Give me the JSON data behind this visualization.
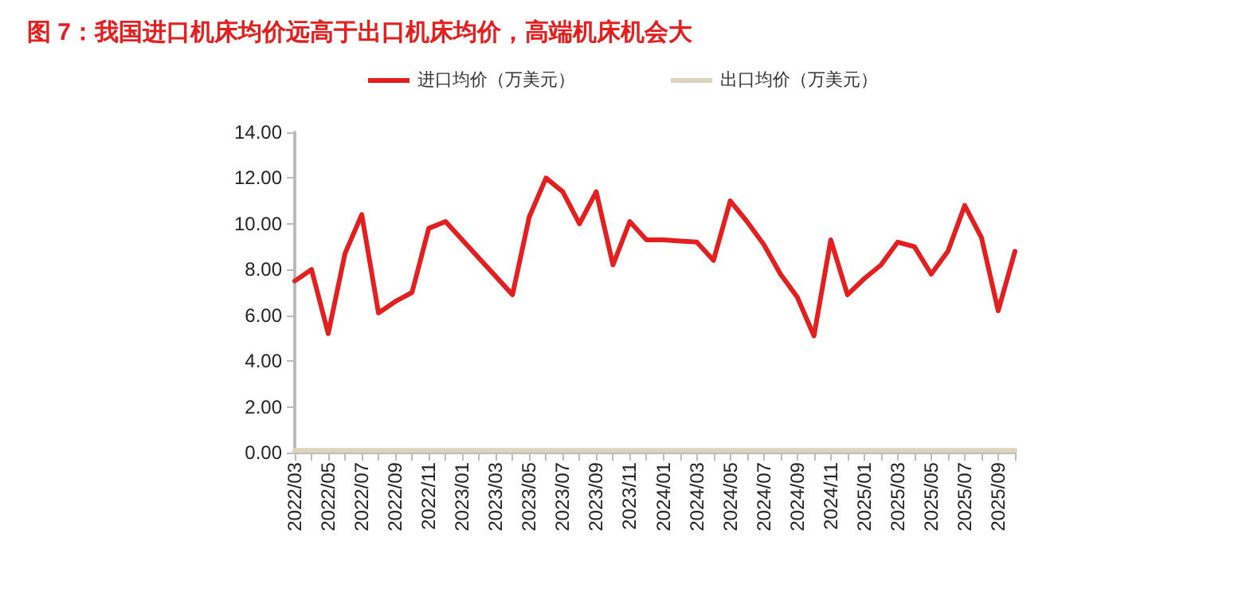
{
  "chart_data": {
    "type": "line",
    "title": "图 7：我国进口机床均价远高于出口机床均价，高端机床机会大",
    "categories": [
      "2022/03",
      null,
      "2022/05",
      null,
      "2022/07",
      null,
      "2022/09",
      null,
      "2022/11",
      null,
      "2023/01",
      null,
      "2023/03",
      null,
      "2023/05",
      null,
      "2023/07",
      null,
      "2023/09",
      null,
      "2023/11",
      null,
      "2024/01",
      null,
      "2024/03",
      null,
      "2024/05",
      null,
      "2024/07",
      null,
      "2024/09",
      null,
      "2024/11",
      null,
      "2025/01",
      null,
      "2025/03",
      null,
      "2025/05",
      null,
      "2025/07",
      null,
      "2025/09",
      null
    ],
    "series": [
      {
        "name": "进口均价（万美元）",
        "color": "#e3201f",
        "values": [
          7.5,
          8.0,
          5.2,
          8.7,
          10.4,
          6.1,
          6.6,
          7.0,
          9.8,
          10.1,
          9.3,
          8.5,
          7.7,
          6.9,
          10.3,
          12.0,
          11.4,
          10.0,
          11.4,
          8.2,
          10.1,
          9.3,
          9.3,
          9.25,
          9.2,
          8.4,
          11.0,
          10.1,
          9.1,
          7.8,
          6.8,
          5.1,
          9.3,
          6.9,
          7.6,
          8.2,
          9.2,
          9.0,
          7.8,
          8.8,
          10.8,
          9.4,
          6.2,
          8.8
        ]
      },
      {
        "name": "出口均价（万美元）",
        "color": "#ddd3bb",
        "values": [
          0.1,
          0.1,
          0.1,
          0.1,
          0.1,
          0.1,
          0.1,
          0.1,
          0.1,
          0.1,
          0.1,
          0.1,
          0.1,
          0.1,
          0.1,
          0.1,
          0.1,
          0.1,
          0.1,
          0.1,
          0.1,
          0.1,
          0.1,
          0.1,
          0.1,
          0.1,
          0.1,
          0.1,
          0.1,
          0.1,
          0.1,
          0.1,
          0.1,
          0.1,
          0.1,
          0.1,
          0.1,
          0.1,
          0.1,
          0.1,
          0.1,
          0.1,
          0.1,
          0.1
        ]
      }
    ],
    "ylim": [
      0,
      14
    ],
    "yticks": [
      {
        "value": 0,
        "label": "0.00"
      },
      {
        "value": 2,
        "label": "2.00"
      },
      {
        "value": 4,
        "label": "4.00"
      },
      {
        "value": 6,
        "label": "6.00"
      },
      {
        "value": 8,
        "label": "8.00"
      },
      {
        "value": 10,
        "label": "10.00"
      },
      {
        "value": 12,
        "label": "12.00"
      },
      {
        "value": 14,
        "label": "14.00"
      }
    ],
    "legend": "top",
    "marker": "none",
    "line_style": "solid"
  }
}
